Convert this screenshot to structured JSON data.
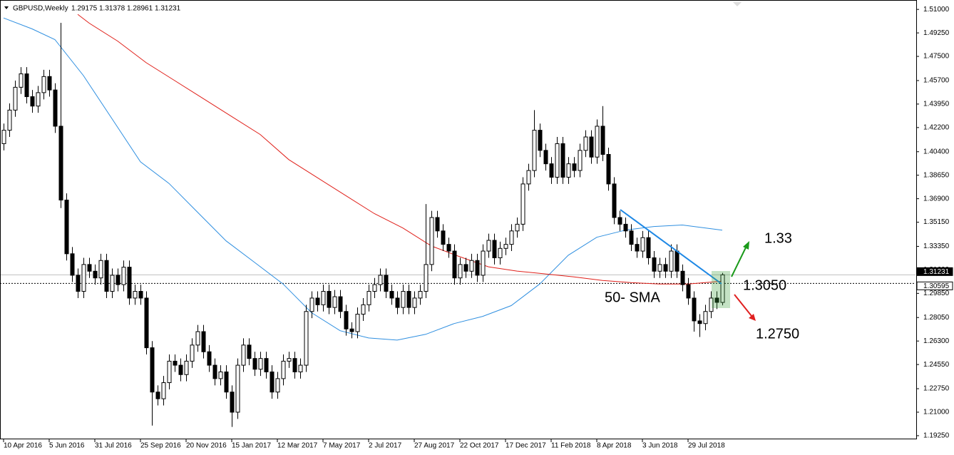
{
  "chart_data": {
    "type": "candlestick",
    "title": "GBPUSD,Weekly",
    "xlim": [
      -0.625,
      160
    ],
    "ylim": [
      1.1898,
      1.517
    ],
    "xticks": [
      {
        "value": 0,
        "label": "10 Apr 2016"
      },
      {
        "value": 8,
        "label": "5 Jun 2016"
      },
      {
        "value": 16,
        "label": "31 Jul 2016"
      },
      {
        "value": 24,
        "label": "25 Sep 2016"
      },
      {
        "value": 32,
        "label": "20 Nov 2016"
      },
      {
        "value": 40,
        "label": "15 Jan 2017"
      },
      {
        "value": 48,
        "label": "12 Mar 2017"
      },
      {
        "value": 56,
        "label": "7 May 2017"
      },
      {
        "value": 64,
        "label": "2 Jul 2017"
      },
      {
        "value": 72,
        "label": "27 Aug 2017"
      },
      {
        "value": 80,
        "label": "22 Oct 2017"
      },
      {
        "value": 88,
        "label": "17 Dec 2017"
      },
      {
        "value": 96,
        "label": "11 Feb 2018"
      },
      {
        "value": 104,
        "label": "8 Apr 2018"
      },
      {
        "value": 112,
        "label": "3 Jun 2018"
      },
      {
        "value": 120,
        "label": "29 Jul 2018"
      }
    ],
    "yticks": [
      {
        "value": 1.51,
        "label": "1.51000"
      },
      {
        "value": 1.4925,
        "label": "1.49250"
      },
      {
        "value": 1.475,
        "label": "1.47500"
      },
      {
        "value": 1.457,
        "label": "1.45700"
      },
      {
        "value": 1.4395,
        "label": "1.43950"
      },
      {
        "value": 1.422,
        "label": "1.42200"
      },
      {
        "value": 1.404,
        "label": "1.40400"
      },
      {
        "value": 1.3865,
        "label": "1.38650"
      },
      {
        "value": 1.369,
        "label": "1.36900"
      },
      {
        "value": 1.3515,
        "label": "1.35150"
      },
      {
        "value": 1.3335,
        "label": "1.33350"
      },
      {
        "value": 1.316,
        "label": "1.31600"
      },
      {
        "value": 1.2985,
        "label": "1.29850"
      },
      {
        "value": 1.2805,
        "label": "1.28050"
      },
      {
        "value": 1.263,
        "label": "1.26300"
      },
      {
        "value": 1.2455,
        "label": "1.24550"
      },
      {
        "value": 1.2275,
        "label": "1.22750"
      },
      {
        "value": 1.21,
        "label": "1.21000"
      },
      {
        "value": 1.1925,
        "label": "1.19250"
      }
    ],
    "open": [
      1.41,
      1.42,
      1.435,
      1.452,
      1.462,
      1.445,
      1.438,
      1.448,
      1.46,
      1.45,
      1.423,
      1.368,
      1.328,
      1.312,
      1.3,
      1.32,
      1.315,
      1.31,
      1.323,
      1.3,
      1.312,
      1.305,
      1.318,
      1.295,
      1.3,
      1.295,
      1.258,
      1.225,
      1.22,
      1.232,
      1.248,
      1.245,
      1.238,
      1.248,
      1.26,
      1.27,
      1.255,
      1.245,
      1.235,
      1.24,
      1.225,
      1.21,
      1.245,
      1.26,
      1.25,
      1.242,
      1.25,
      1.24,
      1.225,
      1.235,
      1.248,
      1.25,
      1.24,
      1.245,
      1.285,
      1.295,
      1.29,
      1.3,
      1.288,
      1.296,
      1.285,
      1.272,
      1.27,
      1.283,
      1.29,
      1.3,
      1.305,
      1.312,
      1.3,
      1.295,
      1.288,
      1.3,
      1.288,
      1.295,
      1.3,
      1.32,
      1.355,
      1.345,
      1.335,
      1.33,
      1.31,
      1.32,
      1.315,
      1.323,
      1.312,
      1.33,
      1.338,
      1.325,
      1.332,
      1.335,
      1.345,
      1.35,
      1.38,
      1.39,
      1.42,
      1.405,
      1.395,
      1.385,
      1.41,
      1.385,
      1.395,
      1.39,
      1.405,
      1.415,
      1.4,
      1.423,
      1.402,
      1.38,
      1.355,
      1.35,
      1.345,
      1.335,
      1.33,
      1.34,
      1.325,
      1.315,
      1.32,
      1.315,
      1.33,
      1.315,
      1.305,
      1.295,
      1.278,
      1.276,
      1.285,
      1.295,
      1.29175
    ],
    "high": [
      1.425,
      1.44,
      1.457,
      1.467,
      1.467,
      1.45,
      1.453,
      1.465,
      1.465,
      1.455,
      1.5,
      1.373,
      1.333,
      1.317,
      1.325,
      1.325,
      1.32,
      1.328,
      1.328,
      1.317,
      1.317,
      1.323,
      1.323,
      1.305,
      1.305,
      1.3,
      1.263,
      1.23,
      1.237,
      1.253,
      1.253,
      1.25,
      1.253,
      1.265,
      1.275,
      1.275,
      1.26,
      1.25,
      1.245,
      1.245,
      1.23,
      1.25,
      1.265,
      1.265,
      1.255,
      1.255,
      1.255,
      1.245,
      1.24,
      1.253,
      1.255,
      1.255,
      1.25,
      1.29,
      1.3,
      1.3,
      1.305,
      1.305,
      1.301,
      1.301,
      1.29,
      1.277,
      1.288,
      1.295,
      1.305,
      1.31,
      1.317,
      1.317,
      1.305,
      1.3,
      1.305,
      1.305,
      1.3,
      1.305,
      1.365,
      1.36,
      1.36,
      1.35,
      1.34,
      1.335,
      1.325,
      1.325,
      1.328,
      1.328,
      1.335,
      1.343,
      1.343,
      1.337,
      1.34,
      1.35,
      1.355,
      1.385,
      1.395,
      1.435,
      1.425,
      1.41,
      1.4,
      1.415,
      1.415,
      1.4,
      1.4,
      1.41,
      1.42,
      1.42,
      1.428,
      1.438,
      1.407,
      1.385,
      1.36,
      1.355,
      1.35,
      1.34,
      1.345,
      1.345,
      1.33,
      1.325,
      1.325,
      1.335,
      1.335,
      1.32,
      1.31,
      1.3,
      1.283,
      1.29,
      1.3,
      1.3,
      1.31378
    ],
    "low": [
      1.405,
      1.415,
      1.43,
      1.447,
      1.44,
      1.433,
      1.433,
      1.443,
      1.445,
      1.418,
      1.362,
      1.323,
      1.307,
      1.295,
      1.295,
      1.31,
      1.305,
      1.305,
      1.295,
      1.295,
      1.3,
      1.3,
      1.29,
      1.29,
      1.29,
      1.253,
      1.2,
      1.215,
      1.215,
      1.227,
      1.24,
      1.233,
      1.233,
      1.243,
      1.255,
      1.25,
      1.24,
      1.23,
      1.23,
      1.22,
      1.199,
      1.205,
      1.24,
      1.245,
      1.237,
      1.237,
      1.235,
      1.22,
      1.22,
      1.23,
      1.243,
      1.235,
      1.235,
      1.24,
      1.28,
      1.285,
      1.285,
      1.283,
      1.283,
      1.28,
      1.267,
      1.265,
      1.265,
      1.278,
      1.285,
      1.295,
      1.3,
      1.295,
      1.29,
      1.283,
      1.283,
      1.283,
      1.283,
      1.29,
      1.295,
      1.315,
      1.34,
      1.33,
      1.325,
      1.305,
      1.305,
      1.31,
      1.31,
      1.307,
      1.307,
      1.325,
      1.32,
      1.32,
      1.327,
      1.33,
      1.34,
      1.345,
      1.375,
      1.385,
      1.4,
      1.39,
      1.38,
      1.38,
      1.38,
      1.38,
      1.385,
      1.385,
      1.4,
      1.395,
      1.395,
      1.397,
      1.375,
      1.35,
      1.345,
      1.34,
      1.33,
      1.325,
      1.325,
      1.32,
      1.31,
      1.31,
      1.31,
      1.31,
      1.31,
      1.3,
      1.29,
      1.27,
      1.266,
      1.271,
      1.28,
      1.2868,
      1.28961
    ],
    "close": [
      1.42,
      1.435,
      1.452,
      1.462,
      1.445,
      1.438,
      1.448,
      1.46,
      1.45,
      1.423,
      1.368,
      1.328,
      1.312,
      1.3,
      1.32,
      1.315,
      1.31,
      1.323,
      1.3,
      1.312,
      1.305,
      1.318,
      1.295,
      1.3,
      1.295,
      1.258,
      1.225,
      1.22,
      1.232,
      1.248,
      1.245,
      1.238,
      1.248,
      1.26,
      1.27,
      1.255,
      1.245,
      1.235,
      1.24,
      1.225,
      1.21,
      1.245,
      1.26,
      1.25,
      1.242,
      1.25,
      1.24,
      1.225,
      1.235,
      1.248,
      1.25,
      1.24,
      1.245,
      1.285,
      1.295,
      1.29,
      1.3,
      1.288,
      1.296,
      1.285,
      1.272,
      1.27,
      1.283,
      1.29,
      1.3,
      1.305,
      1.312,
      1.3,
      1.295,
      1.288,
      1.3,
      1.288,
      1.295,
      1.3,
      1.32,
      1.355,
      1.345,
      1.335,
      1.33,
      1.31,
      1.32,
      1.315,
      1.323,
      1.312,
      1.33,
      1.338,
      1.325,
      1.332,
      1.335,
      1.345,
      1.35,
      1.38,
      1.39,
      1.42,
      1.405,
      1.395,
      1.385,
      1.41,
      1.385,
      1.395,
      1.39,
      1.405,
      1.415,
      1.4,
      1.423,
      1.402,
      1.38,
      1.355,
      1.35,
      1.345,
      1.335,
      1.33,
      1.34,
      1.325,
      1.315,
      1.32,
      1.315,
      1.33,
      1.315,
      1.305,
      1.295,
      1.278,
      1.276,
      1.285,
      1.295,
      1.2918,
      1.31231
    ],
    "series": [
      {
        "color": "#2f8fe0",
        "x": [
          0,
          5,
          9,
          14,
          19,
          24,
          29,
          34,
          39,
          44,
          49,
          54,
          59,
          64,
          69,
          74,
          79,
          84,
          89,
          94,
          99,
          104,
          109,
          114,
          119,
          126
        ],
        "values": [
          1.5036,
          1.4955,
          1.4875,
          1.4607,
          1.4286,
          1.3965,
          1.3804,
          1.359,
          1.3376,
          1.3216,
          1.3055,
          1.2841,
          1.2707,
          1.2653,
          1.2637,
          1.268,
          1.276,
          1.2814,
          1.2894,
          1.3055,
          1.3269,
          1.3403,
          1.3456,
          1.3483,
          1.3494,
          1.3456
        ]
      },
      {
        "color": "#e0201a",
        "x": [
          13,
          15,
          20,
          25,
          30,
          35,
          40,
          45,
          50,
          55,
          60,
          65,
          70,
          75,
          80,
          85,
          90,
          95,
          100,
          105,
          110,
          115,
          120,
          126
        ],
        "values": [
          1.5063,
          1.4998,
          1.4864,
          1.4703,
          1.457,
          1.4436,
          1.4302,
          1.4168,
          1.3981,
          1.3847,
          1.3713,
          1.3579,
          1.3472,
          1.3338,
          1.3258,
          1.3183,
          1.3151,
          1.313,
          1.3108,
          1.3081,
          1.3065,
          1.3055,
          1.3055,
          1.3076
        ]
      }
    ],
    "price_lines": [
      1.31231,
      1.30595
    ],
    "annotations": [
      "1.33",
      "1.3050",
      "50- SMA",
      "1.2750"
    ]
  }
}
